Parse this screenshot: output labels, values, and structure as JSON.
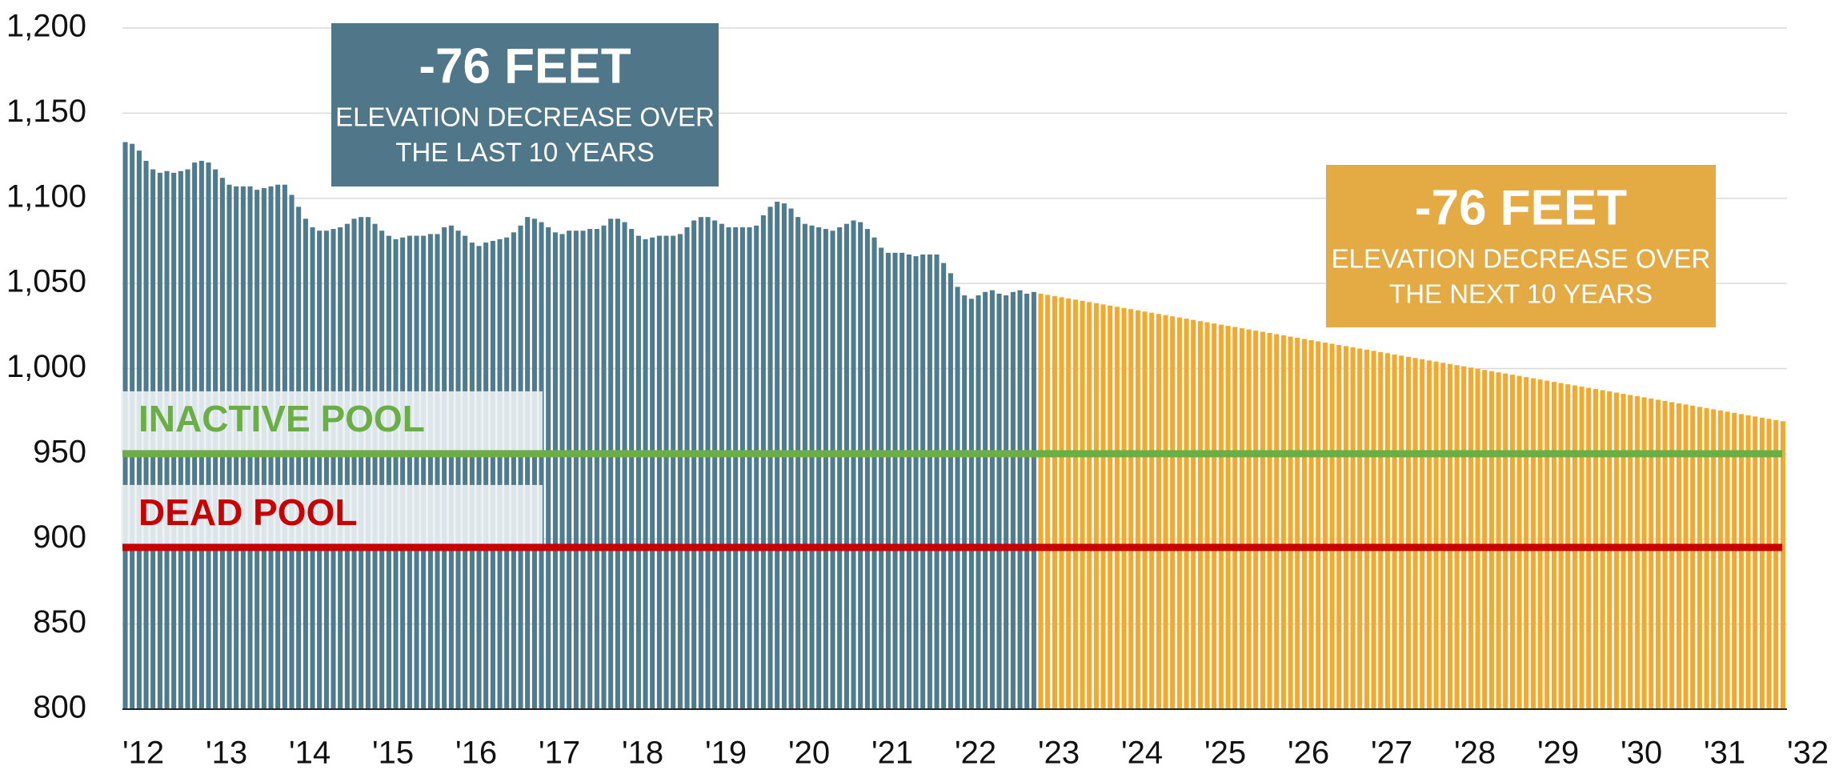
{
  "chart_data": {
    "type": "bar",
    "ylim": [
      800,
      1200
    ],
    "yticks": [
      800,
      850,
      900,
      950,
      {
        "value": 1000,
        "label": "1,000"
      },
      {
        "value": 1050,
        "label": "1,050"
      },
      {
        "value": 1100,
        "label": "1,100"
      },
      {
        "value": 1150,
        "label": "1,150"
      },
      {
        "value": 1200,
        "label": "1,200"
      }
    ],
    "xlim": [
      2012,
      2032
    ],
    "xticks": [
      {
        "value": 2012,
        "label": "'12"
      },
      {
        "value": 2013,
        "label": "'13"
      },
      {
        "value": 2014,
        "label": "'14"
      },
      {
        "value": 2015,
        "label": "'15"
      },
      {
        "value": 2016,
        "label": "'16"
      },
      {
        "value": 2017,
        "label": "'17"
      },
      {
        "value": 2018,
        "label": "'18"
      },
      {
        "value": 2019,
        "label": "'19"
      },
      {
        "value": 2020,
        "label": "'20"
      },
      {
        "value": 2021,
        "label": "'21"
      },
      {
        "value": 2022,
        "label": "'22"
      },
      {
        "value": 2023,
        "label": "'23"
      },
      {
        "value": 2024,
        "label": "'24"
      },
      {
        "value": 2025,
        "label": "'25"
      },
      {
        "value": 2026,
        "label": "'26"
      },
      {
        "value": 2027,
        "label": "'27"
      },
      {
        "value": 2028,
        "label": "'28"
      },
      {
        "value": 2029,
        "label": "'29"
      },
      {
        "value": 2030,
        "label": "'30"
      },
      {
        "value": 2031,
        "label": "'31"
      },
      {
        "value": 2032,
        "label": "'32"
      }
    ],
    "grid": true,
    "series": [
      {
        "color": "#4f7b8e",
        "x": [
          2012,
          2012.083,
          2012.167,
          2012.25,
          2012.333,
          2012.417,
          2012.5,
          2012.583,
          2012.667,
          2012.75,
          2012.833,
          2012.917,
          2013,
          2013.083,
          2013.167,
          2013.25,
          2013.333,
          2013.417,
          2013.5,
          2013.583,
          2013.667,
          2013.75,
          2013.833,
          2013.917,
          2014,
          2014.083,
          2014.167,
          2014.25,
          2014.333,
          2014.417,
          2014.5,
          2014.583,
          2014.667,
          2014.75,
          2014.833,
          2014.917,
          2015,
          2015.083,
          2015.167,
          2015.25,
          2015.333,
          2015.417,
          2015.5,
          2015.583,
          2015.667,
          2015.75,
          2015.833,
          2015.917,
          2016,
          2016.083,
          2016.167,
          2016.25,
          2016.333,
          2016.417,
          2016.5,
          2016.583,
          2016.667,
          2016.75,
          2016.833,
          2016.917,
          2017,
          2017.083,
          2017.167,
          2017.25,
          2017.333,
          2017.417,
          2017.5,
          2017.583,
          2017.667,
          2017.75,
          2017.833,
          2017.917,
          2018,
          2018.083,
          2018.167,
          2018.25,
          2018.333,
          2018.417,
          2018.5,
          2018.583,
          2018.667,
          2018.75,
          2018.833,
          2018.917,
          2019,
          2019.083,
          2019.167,
          2019.25,
          2019.333,
          2019.417,
          2019.5,
          2019.583,
          2019.667,
          2019.75,
          2019.833,
          2019.917,
          2020,
          2020.083,
          2020.167,
          2020.25,
          2020.333,
          2020.417,
          2020.5,
          2020.583,
          2020.667,
          2020.75,
          2020.833,
          2020.917,
          2021,
          2021.083,
          2021.167,
          2021.25,
          2021.333,
          2021.417,
          2021.5,
          2021.583,
          2021.667,
          2021.75,
          2021.833,
          2021.917,
          2022,
          2022.083,
          2022.167,
          2022.25,
          2022.333,
          2022.417,
          2022.5,
          2022.583,
          2022.667,
          2022.75,
          2022.833,
          2022.917
        ],
        "values": [
          1133,
          1132,
          1128,
          1122,
          1117,
          1115,
          1116,
          1115,
          1116,
          1117,
          1121,
          1122,
          1121,
          1117,
          1112,
          1108,
          1107,
          1107,
          1107,
          1105,
          1106,
          1107,
          1108,
          1108,
          1102,
          1095,
          1088,
          1083,
          1081,
          1081,
          1082,
          1083,
          1085,
          1088,
          1089,
          1089,
          1085,
          1081,
          1078,
          1076,
          1077,
          1078,
          1078,
          1078,
          1079,
          1079,
          1083,
          1084,
          1081,
          1078,
          1074,
          1072,
          1074,
          1075,
          1076,
          1077,
          1080,
          1084,
          1089,
          1088,
          1086,
          1083,
          1080,
          1079,
          1081,
          1081,
          1081,
          1082,
          1082,
          1084,
          1088,
          1088,
          1086,
          1082,
          1078,
          1076,
          1077,
          1078,
          1078,
          1078,
          1079,
          1083,
          1087,
          1089,
          1089,
          1087,
          1085,
          1083,
          1083,
          1083,
          1083,
          1084,
          1090,
          1095,
          1098,
          1097,
          1094,
          1089,
          1085,
          1084,
          1083,
          1082,
          1081,
          1083,
          1085,
          1087,
          1086,
          1082,
          1077,
          1071,
          1068,
          1068,
          1068,
          1067,
          1066,
          1067,
          1067,
          1067,
          1062,
          1056,
          1048,
          1043,
          1041,
          1043,
          1045,
          1046,
          1044,
          1043,
          1045,
          1046,
          1044,
          1045
        ]
      },
      {
        "color": "#f2a92e",
        "x": [
          2023,
          2023.083,
          2023.167,
          2023.25,
          2023.333,
          2023.417,
          2023.5,
          2023.583,
          2023.667,
          2023.75,
          2023.833,
          2023.917,
          2024,
          2024.083,
          2024.167,
          2024.25,
          2024.333,
          2024.417,
          2024.5,
          2024.583,
          2024.667,
          2024.75,
          2024.833,
          2024.917,
          2025,
          2025.083,
          2025.167,
          2025.25,
          2025.333,
          2025.417,
          2025.5,
          2025.583,
          2025.667,
          2025.75,
          2025.833,
          2025.917,
          2026,
          2026.083,
          2026.167,
          2026.25,
          2026.333,
          2026.417,
          2026.5,
          2026.583,
          2026.667,
          2026.75,
          2026.833,
          2026.917,
          2027,
          2027.083,
          2027.167,
          2027.25,
          2027.333,
          2027.417,
          2027.5,
          2027.583,
          2027.667,
          2027.75,
          2027.833,
          2027.917,
          2028,
          2028.083,
          2028.167,
          2028.25,
          2028.333,
          2028.417,
          2028.5,
          2028.583,
          2028.667,
          2028.75,
          2028.833,
          2028.917,
          2029,
          2029.083,
          2029.167,
          2029.25,
          2029.333,
          2029.417,
          2029.5,
          2029.583,
          2029.667,
          2029.75,
          2029.833,
          2029.917,
          2030,
          2030.083,
          2030.167,
          2030.25,
          2030.333,
          2030.417,
          2030.5,
          2030.583,
          2030.667,
          2030.75,
          2030.833,
          2030.917,
          2031,
          2031.083,
          2031.167,
          2031.25,
          2031.333,
          2031.417,
          2031.5,
          2031.583,
          2031.667,
          2031.75,
          2031.833,
          2031.917
        ],
        "values": [
          1044,
          1043.3,
          1042.6,
          1041.9,
          1041.2,
          1040.5,
          1039.8,
          1039.1,
          1038.4,
          1037.7,
          1037,
          1036.3,
          1035.6,
          1034.9,
          1034.2,
          1033.5,
          1032.8,
          1032.1,
          1031.4,
          1030.7,
          1030,
          1029.3,
          1028.6,
          1027.9,
          1027.2,
          1026.5,
          1025.8,
          1025.1,
          1024.4,
          1023.7,
          1023,
          1022.3,
          1021.6,
          1020.9,
          1020.2,
          1019.5,
          1018.8,
          1018.1,
          1017.4,
          1016.7,
          1016,
          1015.3,
          1014.6,
          1013.9,
          1013.2,
          1012.5,
          1011.8,
          1011.1,
          1010.4,
          1009.7,
          1009,
          1008.3,
          1007.6,
          1006.9,
          1006.2,
          1005.5,
          1004.8,
          1004.1,
          1003.4,
          1002.7,
          1002,
          1001.3,
          1000.6,
          999.9,
          999.2,
          998.5,
          997.8,
          997.1,
          996.4,
          995.7,
          995,
          994.3,
          993.6,
          992.9,
          992.2,
          991.5,
          990.8,
          990.1,
          989.4,
          988.7,
          988,
          987.3,
          986.6,
          985.9,
          985.2,
          984.5,
          983.8,
          983.1,
          982.4,
          981.7,
          981,
          980.3,
          979.6,
          978.9,
          978.2,
          977.5,
          976.8,
          976.1,
          975.4,
          974.7,
          974,
          973.3,
          972.6,
          971.9,
          971.2,
          970.5,
          969.8,
          969.1
        ]
      }
    ],
    "reference_lines": [
      {
        "label": "INACTIVE POOL",
        "value": 950,
        "color": "#6aae45"
      },
      {
        "label": "DEAD POOL",
        "value": 895,
        "color": "#c80000"
      }
    ],
    "annotations": [
      {
        "headline": "-76 FEET",
        "lines": [
          "ELEVATION DECREASE OVER",
          "THE LAST 10 YEARS"
        ],
        "color": "#4a7285"
      },
      {
        "headline": "-76 FEET",
        "lines": [
          "ELEVATION DECREASE OVER",
          "THE NEXT 10 YEARS"
        ],
        "color": "#e3a83e"
      }
    ]
  }
}
